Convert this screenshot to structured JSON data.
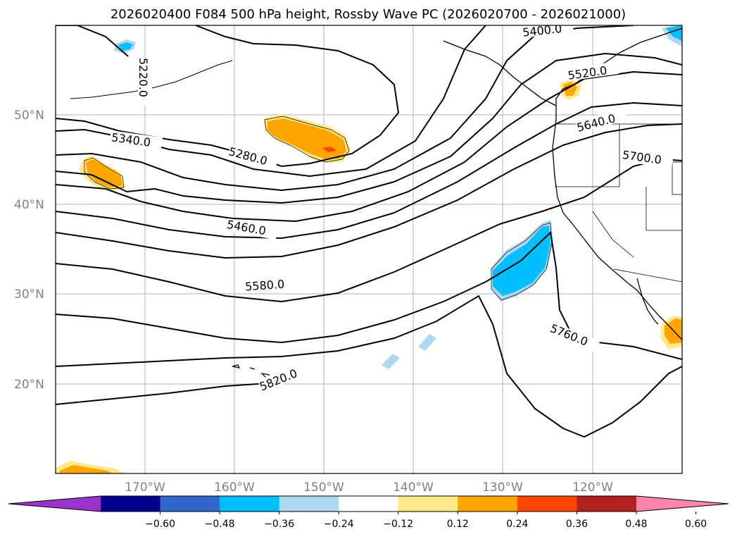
{
  "title": "2026020400 F084 500 hPa height, Rossby Wave PC (2026020700 - 2026021000)",
  "map": {
    "lon_range": [
      -180,
      -110
    ],
    "lat_range": [
      10,
      60
    ],
    "lat_ticks": [
      {
        "value": 20,
        "label": "20°N"
      },
      {
        "value": 30,
        "label": "30°N"
      },
      {
        "value": 40,
        "label": "40°N"
      },
      {
        "value": 50,
        "label": "50°N"
      }
    ],
    "lon_ticks": [
      {
        "value": -170,
        "label": "170°W"
      },
      {
        "value": -160,
        "label": "160°W"
      },
      {
        "value": -150,
        "label": "150°W"
      },
      {
        "value": -140,
        "label": "140°W"
      },
      {
        "value": -130,
        "label": "130°W"
      },
      {
        "value": -120,
        "label": "120°W"
      }
    ],
    "contour_labels": [
      "5220.0",
      "5340.0",
      "5280.0",
      "5400.0",
      "5520.0",
      "5640.0",
      "5700.0",
      "5460.0",
      "5580.0",
      "5760.0",
      "5820.0"
    ]
  },
  "colorbar": {
    "colors": [
      "#9933cc",
      "#00008b",
      "#3366cc",
      "#00bfff",
      "#add8f0",
      "#ffffff",
      "#ffe88a",
      "#ffa500",
      "#ff4500",
      "#b22222",
      "#ff85a8"
    ],
    "tick_labels": [
      "−0.60",
      "−0.48",
      "−0.36",
      "−0.24",
      "−0.12",
      "0.12",
      "0.24",
      "0.36",
      "0.48",
      "0.60"
    ]
  }
}
